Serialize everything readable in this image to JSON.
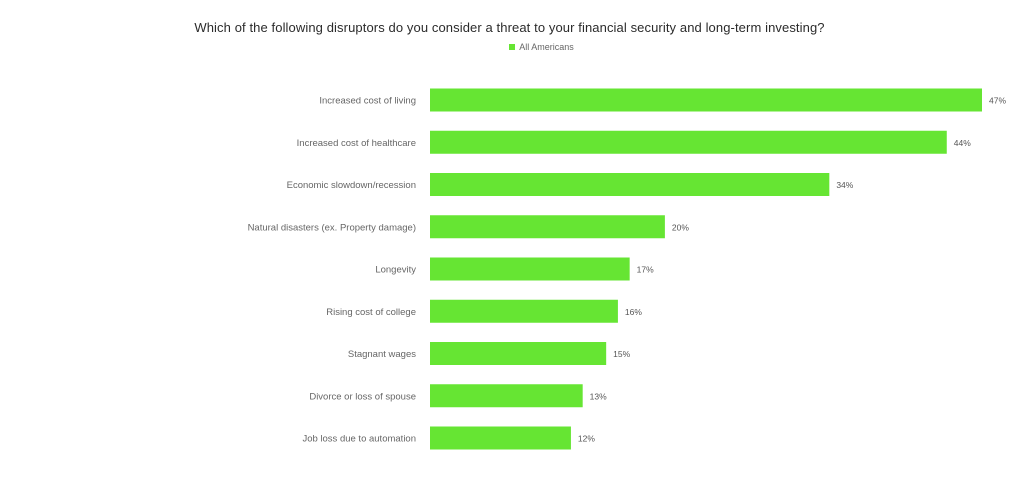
{
  "chart_data": {
    "type": "bar",
    "orientation": "horizontal",
    "title": "Which of the following disruptors do you consider a threat to your financial security and long-term investing?",
    "categories": [
      "Increased cost of living",
      "Increased cost of healthcare",
      "Economic slowdown/recession",
      "Natural disasters (ex. Property damage)",
      "Longevity",
      "Rising cost of college",
      "Stagnant wages",
      "Divorce or loss of spouse",
      "Job loss due to automation"
    ],
    "series": [
      {
        "name": "All Americans",
        "color": "#66e533",
        "values": [
          47,
          44,
          34,
          20,
          17,
          16,
          15,
          13,
          12
        ],
        "value_labels": [
          "47%",
          "44%",
          "34%",
          "20%",
          "17%",
          "16%",
          "15%",
          "13%",
          "12%"
        ]
      }
    ],
    "xlim": [
      0,
      47
    ],
    "grid": false,
    "legend_position": "top-center"
  }
}
